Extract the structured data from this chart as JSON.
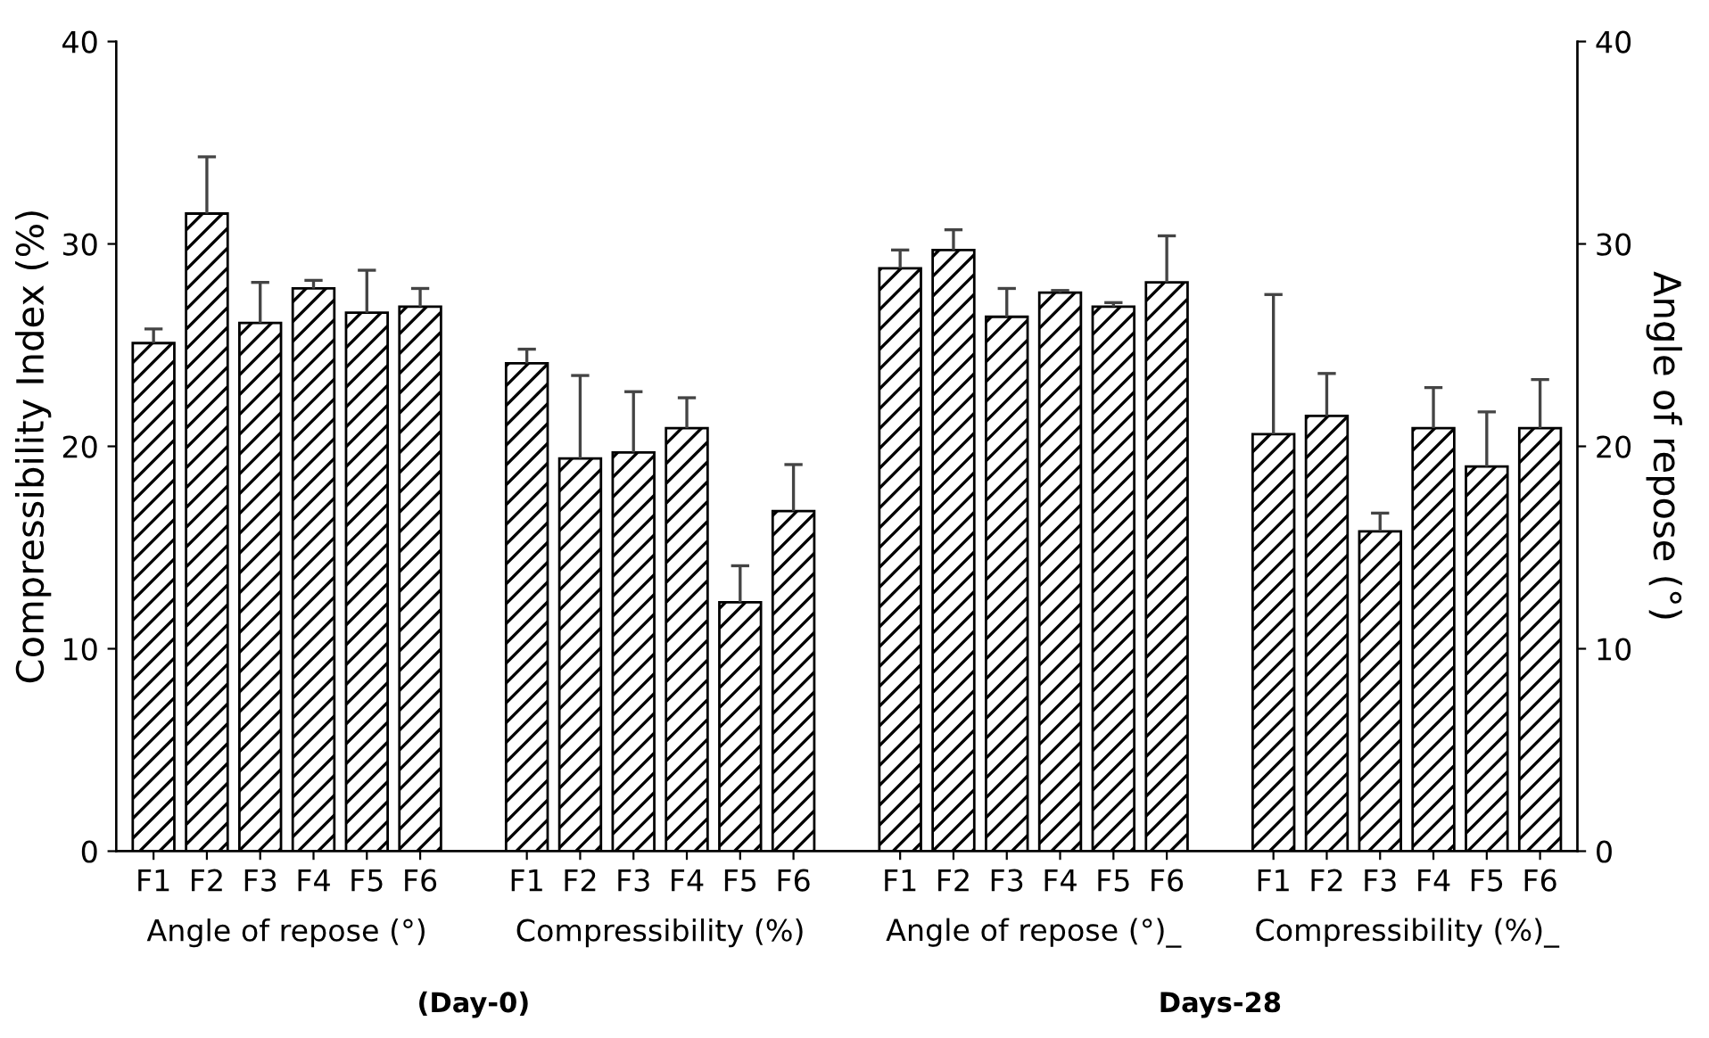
{
  "chart_data": {
    "type": "bar",
    "categories": [
      "F1",
      "F2",
      "F3",
      "F4",
      "F5",
      "F6",
      null,
      "F1",
      "F2",
      "F3",
      "F4",
      "F5",
      "F6",
      null,
      "F1",
      "F2",
      "F3",
      "F4",
      "F5",
      "F6",
      null,
      "F1",
      "F2",
      "F3",
      "F4",
      "F5",
      "F6"
    ],
    "values": [
      25.1,
      31.5,
      26.1,
      27.8,
      26.6,
      26.9,
      null,
      24.1,
      19.4,
      19.7,
      20.9,
      12.3,
      16.8,
      null,
      28.8,
      29.7,
      26.4,
      27.6,
      26.9,
      28.1,
      null,
      20.6,
      21.5,
      15.8,
      20.9,
      19.0,
      20.9
    ],
    "errors": [
      [
        25.1,
        25.8
      ],
      [
        31.5,
        34.3
      ],
      [
        26.1,
        28.1
      ],
      [
        27.8,
        28.2
      ],
      [
        26.6,
        28.7
      ],
      [
        26.9,
        27.8
      ],
      null,
      [
        24.1,
        24.8
      ],
      [
        19.4,
        23.5
      ],
      [
        19.7,
        22.7
      ],
      [
        20.9,
        22.4
      ],
      [
        12.3,
        14.1
      ],
      [
        16.8,
        19.1
      ],
      null,
      [
        28.8,
        29.7
      ],
      [
        29.7,
        30.7
      ],
      [
        26.4,
        27.8
      ],
      [
        27.6,
        27.7
      ],
      [
        26.9,
        27.1
      ],
      [
        28.1,
        30.4
      ],
      null,
      [
        20.6,
        27.5
      ],
      [
        21.5,
        23.6
      ],
      [
        15.8,
        16.7
      ],
      [
        20.9,
        22.9
      ],
      [
        19.0,
        21.7
      ],
      [
        20.9,
        23.3
      ]
    ],
    "color": "#000000",
    "ylabel": "Compressibility Index (%)",
    "y2label": "Angle of repose (°)",
    "ylim": [
      0,
      40
    ],
    "yticks": [
      0,
      10,
      20,
      30,
      40
    ],
    "y2lim": [
      0,
      40
    ],
    "y2ticks": [
      0,
      10,
      20,
      30,
      40
    ],
    "annotations": [
      "Angle of repose (°)",
      "Compressibility (%)",
      "Angle of repose (°)_",
      "Compressibility (%)_",
      "(Day-0)",
      "Days-28"
    ],
    "grid": false
  }
}
